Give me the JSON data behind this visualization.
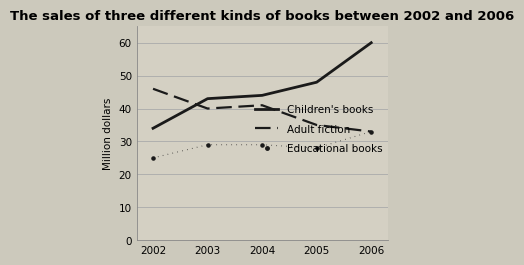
{
  "title": "The sales of three different kinds of books between 2002 and 2006",
  "years": [
    2002,
    2003,
    2004,
    2005,
    2006
  ],
  "children_books": [
    34,
    43,
    44,
    48,
    60
  ],
  "adult_fiction": [
    46,
    40,
    41,
    35,
    33
  ],
  "educational_books": [
    25,
    29,
    29,
    28,
    33
  ],
  "ylabel": "Million dollars",
  "ylim": [
    0,
    65
  ],
  "yticks": [
    0,
    10,
    20,
    30,
    40,
    50,
    60
  ],
  "xlim": [
    2001.7,
    2006.3
  ],
  "legend_labels": [
    "Children's books",
    "Adult fiction",
    "Educational books"
  ],
  "bg_color": "#ccc9bc",
  "plot_bg_color": "#d4d0c3",
  "line_color": "#1a1a1a",
  "grid_color": "#aaaaaa",
  "title_fontsize": 9.5,
  "label_fontsize": 7.5,
  "tick_fontsize": 7.5
}
